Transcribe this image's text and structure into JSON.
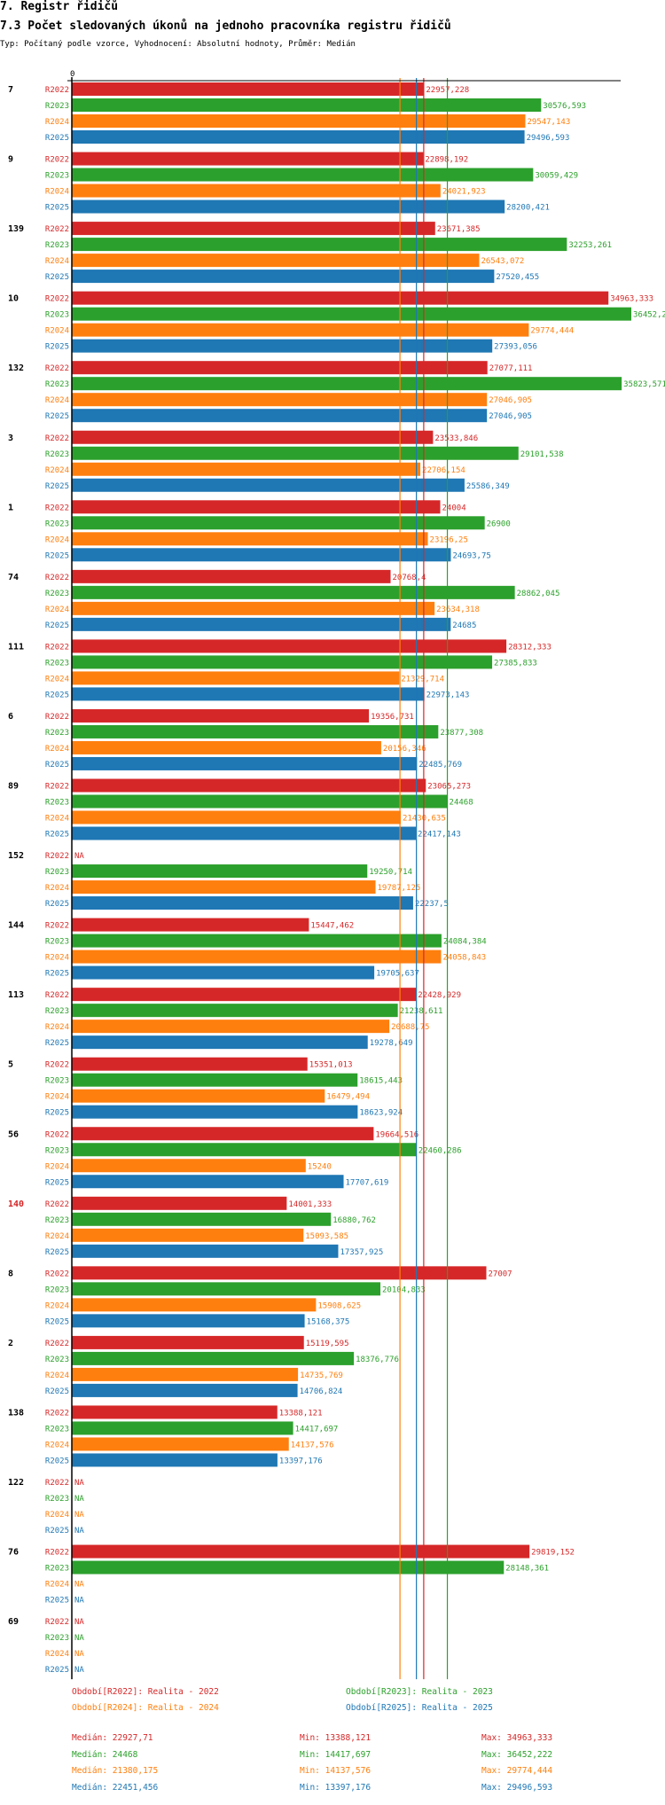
{
  "header": {
    "title": "7. Registr řidičů",
    "subtitle": "7.3 Počet sledovaných úkonů na jednoho pracovníka registru řidičů",
    "info": "Typ: Počítaný podle vzorce, Vyhodnocení: Absolutní hodnoty, Průměr: Medián"
  },
  "colors": {
    "R2022": "#d62728",
    "R2023": "#2ca02c",
    "R2024": "#ff7f0e",
    "R2025": "#1f77b4"
  },
  "chart_data": {
    "type": "bar",
    "orientation": "horizontal",
    "axis_zero_label": "0",
    "xlim": [
      0,
      36452.222
    ],
    "series_names": [
      "R2022",
      "R2023",
      "R2024",
      "R2025"
    ],
    "categories": [
      {
        "label": "7",
        "highlight": false,
        "values": [
          22957.228,
          30576.593,
          29547.143,
          29496.593
        ],
        "labels": [
          "22957,228",
          "30576,593",
          "29547,143",
          "29496,593"
        ]
      },
      {
        "label": "9",
        "highlight": false,
        "values": [
          22898.192,
          30059.429,
          24021.923,
          28200.421
        ],
        "labels": [
          "22898,192",
          "30059,429",
          "24021,923",
          "28200,421"
        ]
      },
      {
        "label": "139",
        "highlight": false,
        "values": [
          23671.385,
          32253.261,
          26543.072,
          27520.455
        ],
        "labels": [
          "23671,385",
          "32253,261",
          "26543,072",
          "27520,455"
        ]
      },
      {
        "label": "10",
        "highlight": false,
        "values": [
          34963.333,
          36452.222,
          29774.444,
          27393.056
        ],
        "labels": [
          "34963,333",
          "36452,222",
          "29774,444",
          "27393,056"
        ]
      },
      {
        "label": "132",
        "highlight": false,
        "values": [
          27077.111,
          35823.571,
          27046.905,
          27046.905
        ],
        "labels": [
          "27077,111",
          "35823,571",
          "27046,905",
          "27046,905"
        ]
      },
      {
        "label": "3",
        "highlight": false,
        "values": [
          23533.846,
          29101.538,
          22706.154,
          25586.349
        ],
        "labels": [
          "23533,846",
          "29101,538",
          "22706,154",
          "25586,349"
        ]
      },
      {
        "label": "1",
        "highlight": false,
        "values": [
          24004,
          26900,
          23196.25,
          24693.75
        ],
        "labels": [
          "24004",
          "26900",
          "23196,25",
          "24693,75"
        ]
      },
      {
        "label": "74",
        "highlight": false,
        "values": [
          20768.4,
          28862.045,
          23634.318,
          24685
        ],
        "labels": [
          "20768,4",
          "28862,045",
          "23634,318",
          "24685"
        ]
      },
      {
        "label": "111",
        "highlight": false,
        "values": [
          28312.333,
          27385.833,
          21329.714,
          22973.143
        ],
        "labels": [
          "28312,333",
          "27385,833",
          "21329,714",
          "22973,143"
        ]
      },
      {
        "label": "6",
        "highlight": false,
        "values": [
          19356.731,
          23877.308,
          20156.346,
          22485.769
        ],
        "labels": [
          "19356,731",
          "23877,308",
          "20156,346",
          "22485,769"
        ]
      },
      {
        "label": "89",
        "highlight": false,
        "values": [
          23065.273,
          24468,
          21430.635,
          22417.143
        ],
        "labels": [
          "23065,273",
          "24468",
          "21430,635",
          "22417,143"
        ]
      },
      {
        "label": "152",
        "highlight": false,
        "values": [
          null,
          19250.714,
          19787.125,
          22237.5
        ],
        "labels": [
          "NA",
          "19250,714",
          "19787,125",
          "22237,5"
        ]
      },
      {
        "label": "144",
        "highlight": false,
        "values": [
          15447.462,
          24084.384,
          24058.843,
          19705.637
        ],
        "labels": [
          "15447,462",
          "24084,384",
          "24058,843",
          "19705,637"
        ]
      },
      {
        "label": "113",
        "highlight": false,
        "values": [
          22428.929,
          21238.611,
          20688.75,
          19278.649
        ],
        "labels": [
          "22428,929",
          "21238,611",
          "20688,75",
          "19278,649"
        ]
      },
      {
        "label": "5",
        "highlight": false,
        "values": [
          15351.013,
          18615.443,
          16479.494,
          18623.924
        ],
        "labels": [
          "15351,013",
          "18615,443",
          "16479,494",
          "18623,924"
        ]
      },
      {
        "label": "56",
        "highlight": false,
        "values": [
          19664.516,
          22460.286,
          15240,
          17707.619
        ],
        "labels": [
          "19664,516",
          "22460,286",
          "15240",
          "17707,619"
        ]
      },
      {
        "label": "140",
        "highlight": true,
        "values": [
          14001.333,
          16880.762,
          15093.585,
          17357.925
        ],
        "labels": [
          "14001,333",
          "16880,762",
          "15093,585",
          "17357,925"
        ]
      },
      {
        "label": "8",
        "highlight": false,
        "values": [
          27007,
          20104.833,
          15908.625,
          15168.375
        ],
        "labels": [
          "27007",
          "20104,833",
          "15908,625",
          "15168,375"
        ]
      },
      {
        "label": "2",
        "highlight": false,
        "values": [
          15119.595,
          18376.776,
          14735.769,
          14706.824
        ],
        "labels": [
          "15119,595",
          "18376,776",
          "14735,769",
          "14706,824"
        ]
      },
      {
        "label": "138",
        "highlight": false,
        "values": [
          13388.121,
          14417.697,
          14137.576,
          13397.176
        ],
        "labels": [
          "13388,121",
          "14417,697",
          "14137,576",
          "13397,176"
        ]
      },
      {
        "label": "122",
        "highlight": false,
        "values": [
          null,
          null,
          null,
          null
        ],
        "labels": [
          "NA",
          "NA",
          "NA",
          "NA"
        ]
      },
      {
        "label": "76",
        "highlight": false,
        "values": [
          29819.152,
          28148.361,
          null,
          null
        ],
        "labels": [
          "29819,152",
          "28148,361",
          "NA",
          "NA"
        ]
      },
      {
        "label": "69",
        "highlight": false,
        "values": [
          null,
          null,
          null,
          null
        ],
        "labels": [
          "NA",
          "NA",
          "NA",
          "NA"
        ]
      }
    ],
    "reference_lines": [
      {
        "series": "R2024",
        "value": 21380.175
      },
      {
        "series": "R2025",
        "value": 22451.456
      },
      {
        "series": "R2022",
        "value": 22927.71
      },
      {
        "series": "R2023",
        "value": 24468
      }
    ]
  },
  "legend": {
    "periods": [
      {
        "series": "R2022",
        "text": "Období[R2022]: Realita - 2022"
      },
      {
        "series": "R2023",
        "text": "Období[R2023]: Realita - 2023"
      },
      {
        "series": "R2024",
        "text": "Období[R2024]: Realita - 2024"
      },
      {
        "series": "R2025",
        "text": "Období[R2025]: Realita - 2025"
      }
    ],
    "stats": [
      {
        "series": "R2022",
        "median": "Medián: 22927,71",
        "min": "Min: 13388,121",
        "max": "Max: 34963,333"
      },
      {
        "series": "R2023",
        "median": "Medián: 24468",
        "min": "Min: 14417,697",
        "max": "Max: 36452,222"
      },
      {
        "series": "R2024",
        "median": "Medián: 21380,175",
        "min": "Min: 14137,576",
        "max": "Max: 29774,444"
      },
      {
        "series": "R2025",
        "median": "Medián: 22451,456",
        "min": "Min: 13397,176",
        "max": "Max: 29496,593"
      }
    ]
  }
}
